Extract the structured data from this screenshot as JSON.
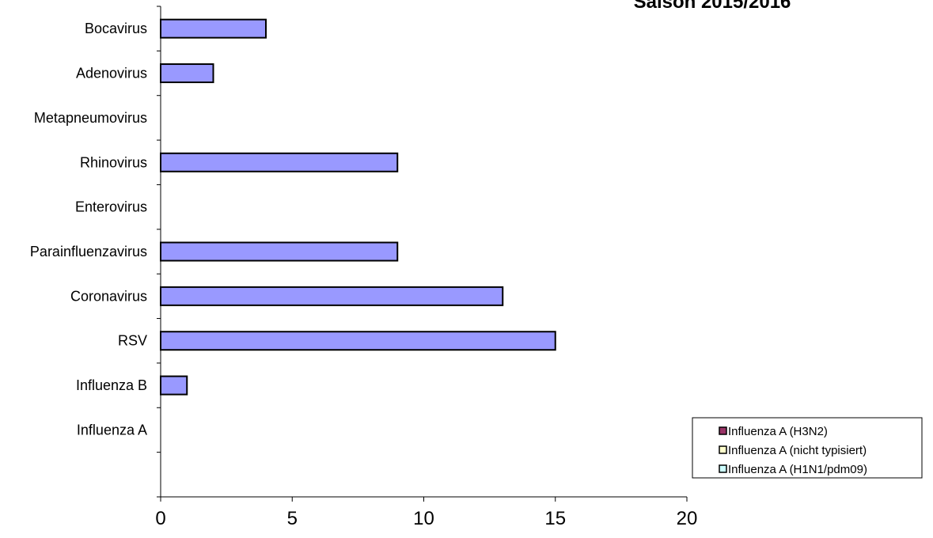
{
  "chart_data": {
    "type": "bar",
    "orientation": "horizontal",
    "title": "Saison 2015/2016",
    "categories": [
      "Influenza A",
      "Influenza B",
      "RSV",
      "Coronavirus",
      "Parainfluenzavirus",
      "Enterovirus",
      "Rhinovirus",
      "Metapneumovirus",
      "Adenovirus",
      "Bocavirus"
    ],
    "values": [
      0,
      1,
      15,
      13,
      9,
      0,
      9,
      0,
      2,
      4
    ],
    "bar_color": "#9999ff",
    "xlim": [
      0,
      20
    ],
    "x_ticks": [
      0,
      5,
      10,
      15,
      20
    ],
    "grid": false,
    "legend": {
      "placement": "bottom-right",
      "entries": [
        {
          "name": "Influenza A (H3N2)",
          "color": "#993366"
        },
        {
          "name": "Influenza A (nicht typisiert)",
          "color": "#ffffcc"
        },
        {
          "name": "Influenza A (H1N1/pdm09)",
          "color": "#ccffff"
        }
      ]
    }
  }
}
